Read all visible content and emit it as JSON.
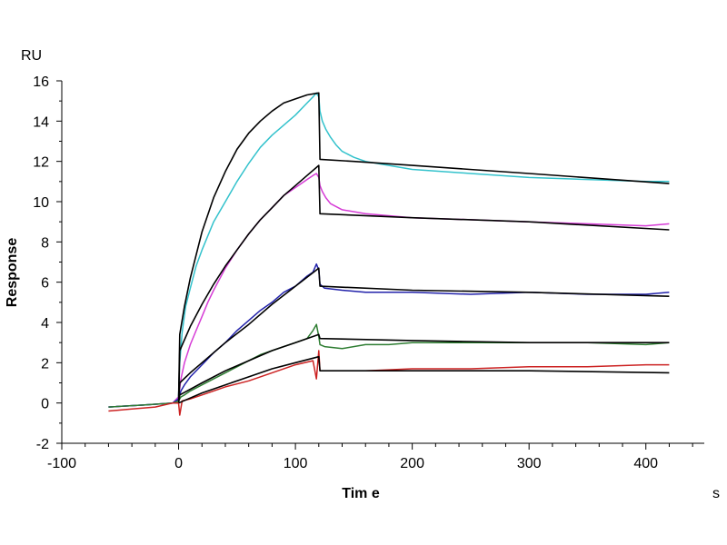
{
  "chart_data": {
    "type": "line",
    "title": "",
    "xlabel": "Tim e",
    "ylabel": "Response",
    "x_unit": "s",
    "y_unit": "RU",
    "xlim": [
      -100,
      450
    ],
    "ylim": [
      -2,
      16
    ],
    "x_ticks": [
      -100,
      0,
      100,
      200,
      300,
      400
    ],
    "x_tick_labels": [
      "-100",
      "0",
      "100",
      "200",
      "300",
      "400"
    ],
    "y_ticks": [
      -2,
      0,
      2,
      4,
      6,
      8,
      10,
      12,
      14,
      16
    ],
    "y_tick_labels": [
      "-2",
      "0",
      "2",
      "4",
      "6",
      "8",
      "10",
      "12",
      "14",
      "16"
    ],
    "grid": false,
    "legend": "none",
    "series": [
      {
        "color": "#33c2cc",
        "kind": "measured",
        "x": [
          -60,
          -30,
          -5,
          0,
          1,
          3,
          6,
          10,
          15,
          20,
          25,
          30,
          40,
          50,
          60,
          70,
          80,
          90,
          100,
          110,
          115,
          118,
          120,
          121,
          123,
          126,
          130,
          135,
          140,
          150,
          160,
          180,
          200,
          250,
          300,
          350,
          400,
          420
        ],
        "y": [
          -0.2,
          -0.1,
          0.0,
          0.3,
          2.0,
          3.5,
          4.8,
          5.7,
          6.8,
          7.6,
          8.3,
          9.0,
          10.0,
          11.0,
          11.9,
          12.7,
          13.3,
          13.8,
          14.3,
          14.9,
          15.2,
          15.4,
          15.2,
          14.5,
          14.0,
          13.6,
          13.2,
          12.8,
          12.5,
          12.2,
          12.0,
          11.8,
          11.6,
          11.4,
          11.2,
          11.1,
          11.0,
          11.0
        ]
      },
      {
        "color": "#000000",
        "kind": "fit",
        "x": [
          0,
          1,
          5,
          10,
          20,
          30,
          40,
          50,
          60,
          70,
          80,
          90,
          100,
          110,
          120,
          121,
          150,
          200,
          300,
          420
        ],
        "y": [
          0.0,
          3.4,
          4.8,
          6.2,
          8.5,
          10.2,
          11.5,
          12.6,
          13.4,
          14.0,
          14.5,
          14.9,
          15.1,
          15.3,
          15.4,
          12.1,
          12.0,
          11.8,
          11.4,
          10.9
        ]
      },
      {
        "color": "#d63cd6",
        "kind": "measured",
        "x": [
          -60,
          -30,
          -5,
          0,
          2,
          5,
          10,
          15,
          20,
          25,
          30,
          40,
          50,
          60,
          70,
          80,
          90,
          100,
          110,
          115,
          118,
          120,
          121,
          123,
          126,
          130,
          140,
          160,
          200,
          250,
          300,
          350,
          400,
          420
        ],
        "y": [
          -0.2,
          -0.1,
          0.0,
          0.3,
          1.2,
          2.0,
          2.9,
          3.6,
          4.3,
          5.0,
          5.6,
          6.7,
          7.6,
          8.4,
          9.1,
          9.7,
          10.3,
          10.7,
          11.1,
          11.3,
          11.4,
          11.2,
          10.8,
          10.5,
          10.2,
          9.9,
          9.6,
          9.4,
          9.2,
          9.1,
          9.0,
          8.9,
          8.8,
          8.9
        ]
      },
      {
        "color": "#000000",
        "kind": "fit",
        "x": [
          0,
          1,
          10,
          20,
          30,
          40,
          50,
          60,
          70,
          80,
          90,
          100,
          110,
          120,
          121,
          200,
          300,
          420
        ],
        "y": [
          0.0,
          2.6,
          3.8,
          4.9,
          5.9,
          6.8,
          7.6,
          8.4,
          9.1,
          9.7,
          10.3,
          10.8,
          11.3,
          11.8,
          9.4,
          9.2,
          9.0,
          8.6
        ]
      },
      {
        "color": "#2222aa",
        "kind": "measured",
        "x": [
          -60,
          -30,
          -5,
          0,
          2,
          5,
          10,
          20,
          30,
          40,
          50,
          60,
          70,
          80,
          90,
          100,
          110,
          115,
          118,
          120,
          121,
          125,
          140,
          160,
          200,
          250,
          300,
          350,
          400,
          420
        ],
        "y": [
          -0.2,
          -0.1,
          0.0,
          0.2,
          0.6,
          0.9,
          1.3,
          1.9,
          2.5,
          3.0,
          3.6,
          4.1,
          4.6,
          5.0,
          5.5,
          5.8,
          6.3,
          6.5,
          6.9,
          6.6,
          5.9,
          5.7,
          5.6,
          5.5,
          5.5,
          5.4,
          5.5,
          5.4,
          5.4,
          5.5
        ]
      },
      {
        "color": "#000000",
        "kind": "fit",
        "x": [
          0,
          1,
          10,
          20,
          40,
          60,
          80,
          100,
          120,
          121,
          200,
          300,
          420
        ],
        "y": [
          0.0,
          1.0,
          1.5,
          2.0,
          3.0,
          3.9,
          4.9,
          5.8,
          6.7,
          5.8,
          5.6,
          5.5,
          5.3
        ]
      },
      {
        "color": "#2e7d32",
        "kind": "measured",
        "x": [
          -60,
          -30,
          -5,
          0,
          2,
          5,
          10,
          20,
          30,
          40,
          50,
          60,
          70,
          80,
          90,
          100,
          110,
          115,
          118,
          120,
          121,
          125,
          140,
          160,
          180,
          200,
          250,
          300,
          350,
          400,
          420
        ],
        "y": [
          -0.2,
          -0.1,
          0.0,
          0.1,
          0.3,
          0.4,
          0.6,
          0.9,
          1.2,
          1.5,
          1.8,
          2.1,
          2.4,
          2.6,
          2.8,
          3.0,
          3.2,
          3.6,
          3.9,
          3.3,
          2.9,
          2.8,
          2.7,
          2.9,
          2.9,
          3.0,
          3.0,
          3.0,
          3.0,
          2.9,
          3.0
        ]
      },
      {
        "color": "#000000",
        "kind": "fit",
        "x": [
          0,
          1,
          20,
          40,
          60,
          80,
          100,
          120,
          121,
          200,
          300,
          420
        ],
        "y": [
          0.0,
          0.4,
          1.0,
          1.6,
          2.1,
          2.6,
          3.0,
          3.4,
          3.2,
          3.1,
          3.0,
          3.0
        ]
      },
      {
        "color": "#cc2222",
        "kind": "measured",
        "x": [
          -60,
          -40,
          -20,
          -5,
          0,
          1,
          3,
          10,
          20,
          40,
          60,
          80,
          100,
          115,
          118,
          120,
          121,
          125,
          140,
          160,
          200,
          250,
          300,
          350,
          400,
          420
        ],
        "y": [
          -0.4,
          -0.3,
          -0.2,
          0.0,
          0.0,
          -0.6,
          0.1,
          0.2,
          0.4,
          0.8,
          1.1,
          1.5,
          1.9,
          2.1,
          1.2,
          2.6,
          1.6,
          1.6,
          1.6,
          1.6,
          1.7,
          1.7,
          1.8,
          1.8,
          1.9,
          1.9
        ]
      },
      {
        "color": "#000000",
        "kind": "fit",
        "x": [
          0,
          20,
          40,
          60,
          80,
          100,
          120,
          121,
          150,
          200,
          300,
          420
        ],
        "y": [
          0.0,
          0.5,
          0.9,
          1.3,
          1.7,
          2.0,
          2.3,
          1.6,
          1.6,
          1.6,
          1.6,
          1.5
        ]
      }
    ]
  }
}
